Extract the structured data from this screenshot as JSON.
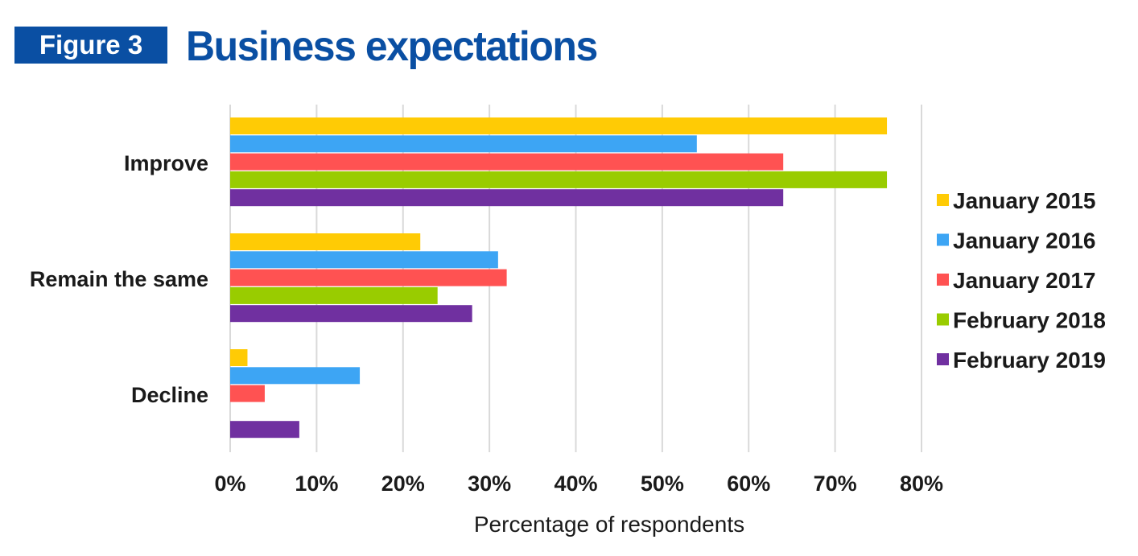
{
  "header": {
    "figure_label": "Figure 3",
    "title": "Business expectations"
  },
  "chart_data": {
    "type": "bar",
    "orientation": "horizontal",
    "title": "Business expectations",
    "xlabel": "Percentage of respondents",
    "ylabel": "",
    "categories": [
      "Improve",
      "Remain the same",
      "Decline"
    ],
    "xlim": [
      0,
      80
    ],
    "ticks": [
      "0%",
      "10%",
      "20%",
      "30%",
      "40%",
      "50%",
      "60%",
      "70%",
      "80%"
    ],
    "grid": true,
    "legend_position": "right",
    "series": [
      {
        "name": "January 2015",
        "color": "#ffcb05",
        "values": [
          76,
          22,
          2
        ]
      },
      {
        "name": "January 2016",
        "color": "#3da5f4",
        "values": [
          54,
          31,
          15
        ]
      },
      {
        "name": "January 2017",
        "color": "#ff5252",
        "values": [
          64,
          32,
          4
        ]
      },
      {
        "name": "February 2018",
        "color": "#99cc00",
        "values": [
          76,
          24,
          0
        ]
      },
      {
        "name": "February 2019",
        "color": "#7030a0",
        "values": [
          64,
          28,
          8
        ]
      }
    ]
  },
  "colors": {
    "brand_blue": "#0a4fa3",
    "gridline": "#d9d9d9"
  }
}
